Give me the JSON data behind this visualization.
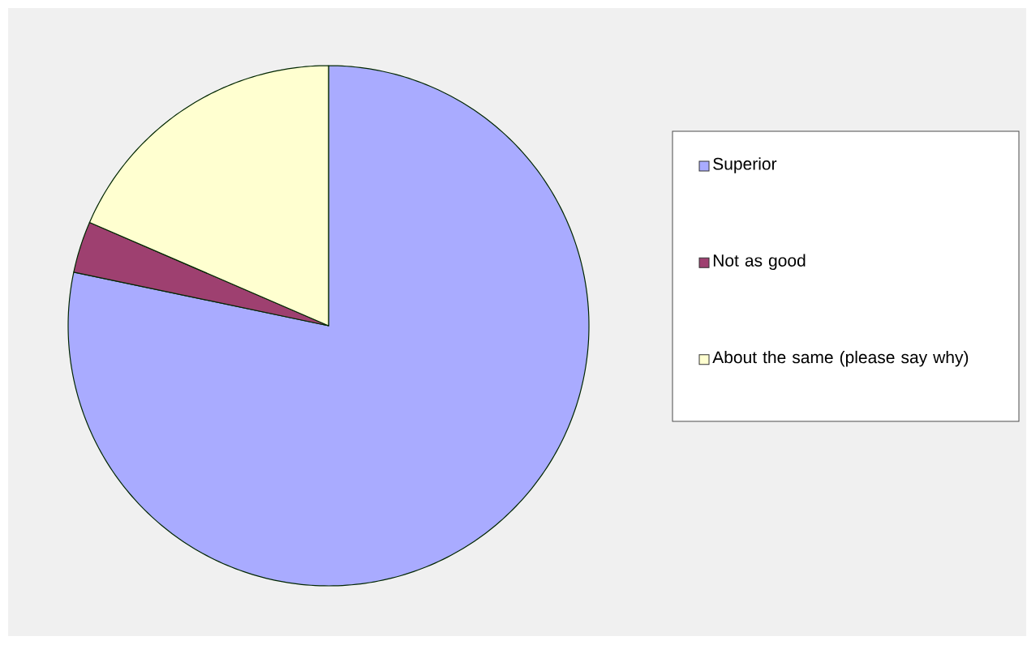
{
  "chart_data": {
    "type": "pie",
    "categories": [
      "Superior",
      "Not as good",
      "About the same (please say why)"
    ],
    "values": [
      78.3,
      3.2,
      18.5
    ],
    "colors": [
      "#a9abff",
      "#9e4070",
      "#ffffd0"
    ],
    "legend": "right"
  }
}
